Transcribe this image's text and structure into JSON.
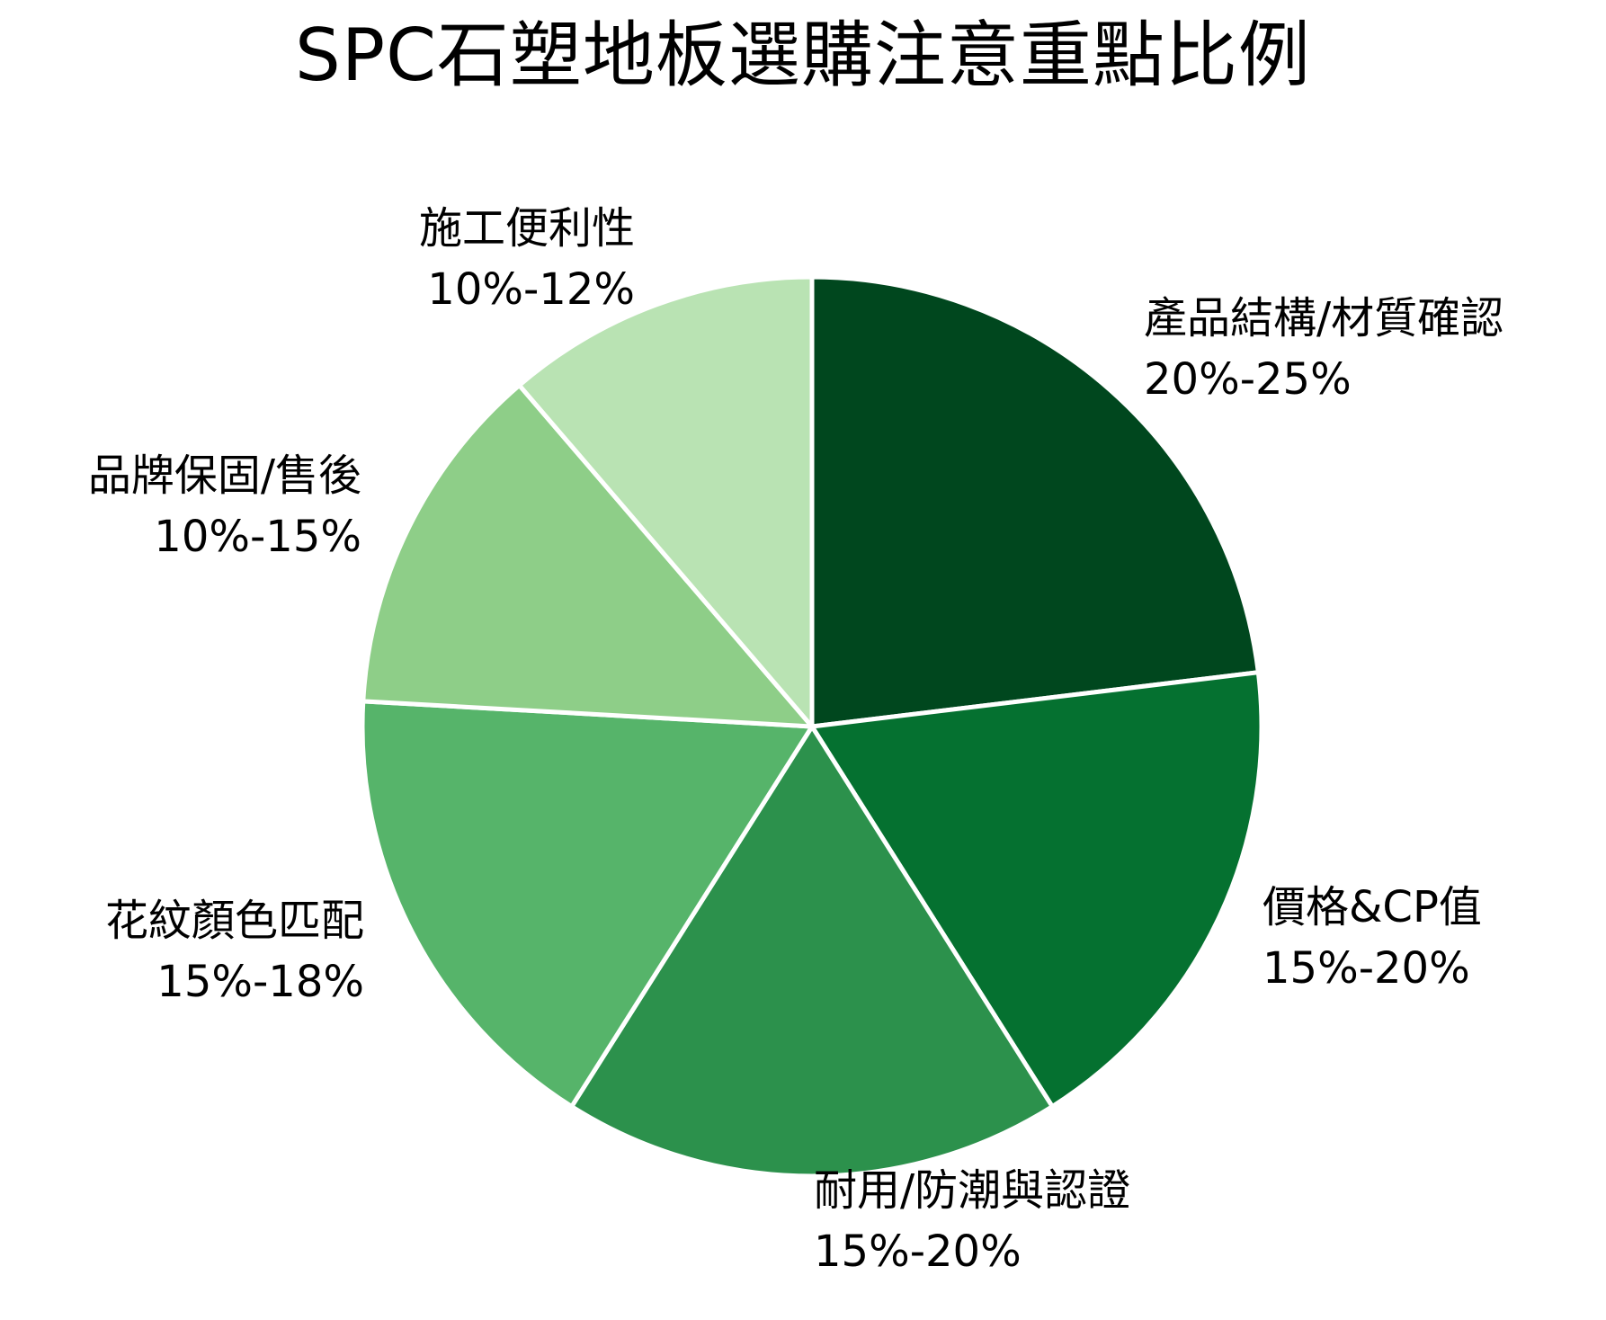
{
  "chart_data": {
    "type": "pie",
    "title": "SPC石塑地板選購注意重點比例",
    "slices": [
      {
        "label": "產品結構/材質確認",
        "range_text": "20%-25%",
        "value": 22.5,
        "color": "#00471e"
      },
      {
        "label": "價格&CP值",
        "range_text": "15%-20%",
        "value": 17.5,
        "color": "#057130"
      },
      {
        "label": "耐用/防潮與認證",
        "range_text": "15%-20%",
        "value": 17.5,
        "color": "#2c914c"
      },
      {
        "label": "花紋顏色匹配",
        "range_text": "15%-18%",
        "value": 16.5,
        "color": "#56b46a"
      },
      {
        "label": "品牌保固/售後",
        "range_text": "10%-15%",
        "value": 12.5,
        "color": "#8ece88"
      },
      {
        "label": "施工便利性",
        "range_text": "10%-12%",
        "value": 11,
        "color": "#b9e3b3"
      }
    ],
    "start_angle": "12 o'clock",
    "direction": "clockwise",
    "legend": "none"
  }
}
